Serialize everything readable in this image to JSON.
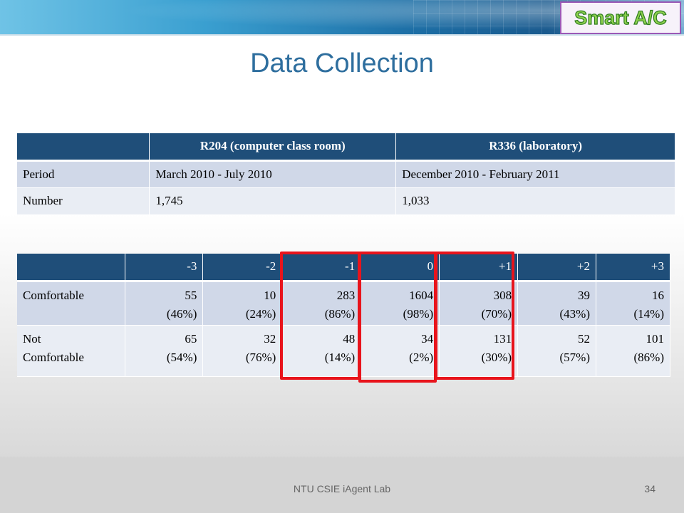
{
  "header": {
    "logo_text": "Smart A/C"
  },
  "title": "Data Collection",
  "table1": {
    "headers": [
      "",
      "R204 (computer class room)",
      "R336 (laboratory)"
    ],
    "rows": [
      [
        "Period",
        "March 2010  - July 2010",
        "December 2010  - February 2011"
      ],
      [
        "Number",
        "1,745",
        "1,033"
      ]
    ]
  },
  "table2": {
    "headers": [
      "",
      "-3",
      "-2",
      "-1",
      "0",
      "+1",
      "+2",
      "+3"
    ],
    "rows": [
      {
        "label_line1": "Comfortable",
        "label_line2": "",
        "cells": [
          [
            "55",
            "(46%)"
          ],
          [
            "10",
            "(24%)"
          ],
          [
            "283",
            "(86%)"
          ],
          [
            "1604",
            "(98%)"
          ],
          [
            "308",
            "(70%)"
          ],
          [
            "39",
            "(43%)"
          ],
          [
            "16",
            "(14%)"
          ]
        ]
      },
      {
        "label_line1": "Not",
        "label_line2": "Comfortable",
        "cells": [
          [
            "65",
            "(54%)"
          ],
          [
            "32",
            "(76%)"
          ],
          [
            "48",
            "(14%)"
          ],
          [
            "34",
            "(2%)"
          ],
          [
            "131",
            "(30%)"
          ],
          [
            "52",
            "(57%)"
          ],
          [
            "101",
            "(86%)"
          ]
        ]
      }
    ]
  },
  "footer": {
    "text": "NTU CSIE iAgent Lab",
    "page_number": "34"
  },
  "colors": {
    "header_fill": "#1f4e79",
    "row_dark": "#d0d8e8",
    "row_light": "#e9edf4",
    "highlight": "#e8141c",
    "title": "#2e6e9e"
  }
}
